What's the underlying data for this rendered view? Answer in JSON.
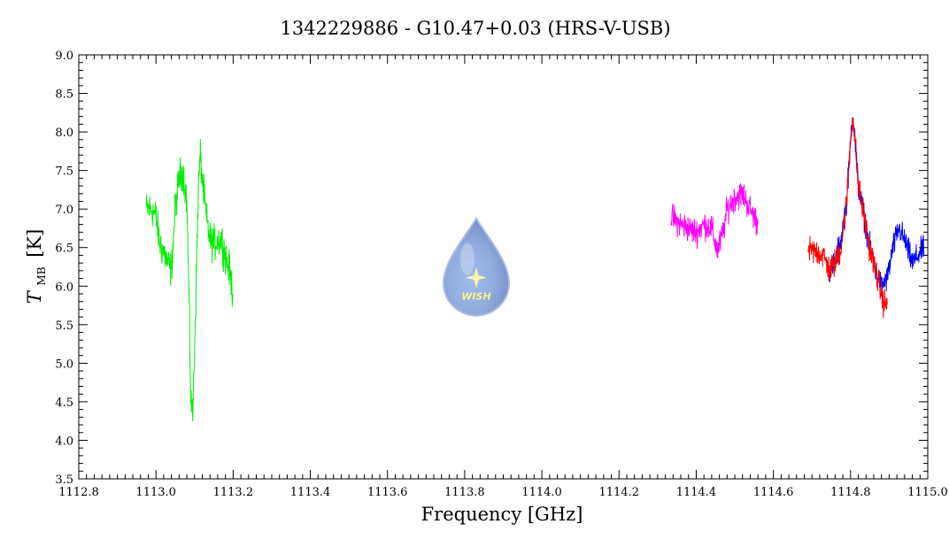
{
  "chart_data": {
    "type": "line",
    "title": "1342229886 - G10.47+0.03 (HRS-V-USB)",
    "xlabel": "Frequency [GHz]",
    "ylabel": {
      "symbol": "T",
      "subscript": "MB",
      "unit": "[K]"
    },
    "xlim": [
      1112.8,
      1115.0
    ],
    "ylim": [
      3.5,
      9.0
    ],
    "x_ticks": [
      "1112.8",
      "1113.0",
      "1113.2",
      "1113.4",
      "1113.6",
      "1113.8",
      "1114.0",
      "1114.2",
      "1114.4",
      "1114.6",
      "1114.8",
      "1115.0"
    ],
    "y_ticks": [
      "3.5",
      "4.0",
      "4.5",
      "5.0",
      "5.5",
      "6.0",
      "6.5",
      "7.0",
      "7.5",
      "8.0",
      "8.5",
      "9.0"
    ],
    "grid": false,
    "logo": {
      "text": "WISH",
      "center_x": 1113.83,
      "center_y": 6.1
    },
    "series": [
      {
        "color": "#00ee00",
        "noise": 0.28,
        "points": [
          [
            1112.975,
            7.0
          ],
          [
            1112.99,
            7.0
          ],
          [
            1113.0,
            6.9
          ],
          [
            1113.01,
            6.55
          ],
          [
            1113.02,
            6.45
          ],
          [
            1113.03,
            6.3
          ],
          [
            1113.04,
            6.2
          ],
          [
            1113.05,
            7.0
          ],
          [
            1113.06,
            7.4
          ],
          [
            1113.07,
            7.5
          ],
          [
            1113.08,
            7.1
          ],
          [
            1113.085,
            6.0
          ],
          [
            1113.09,
            4.6
          ],
          [
            1113.095,
            4.3
          ],
          [
            1113.1,
            5.2
          ],
          [
            1113.105,
            6.2
          ],
          [
            1113.11,
            7.3
          ],
          [
            1113.115,
            7.7
          ],
          [
            1113.12,
            7.4
          ],
          [
            1113.13,
            6.9
          ],
          [
            1113.14,
            6.6
          ],
          [
            1113.15,
            6.55
          ],
          [
            1113.16,
            6.6
          ],
          [
            1113.17,
            6.6
          ],
          [
            1113.18,
            6.4
          ],
          [
            1113.19,
            6.2
          ],
          [
            1113.2,
            5.9
          ]
        ]
      },
      {
        "color": "#ff00ff",
        "noise": 0.22,
        "points": [
          [
            1114.335,
            6.9
          ],
          [
            1114.36,
            6.8
          ],
          [
            1114.38,
            6.75
          ],
          [
            1114.4,
            6.7
          ],
          [
            1114.42,
            6.8
          ],
          [
            1114.44,
            6.75
          ],
          [
            1114.455,
            6.45
          ],
          [
            1114.47,
            6.7
          ],
          [
            1114.48,
            7.0
          ],
          [
            1114.5,
            7.15
          ],
          [
            1114.52,
            7.2
          ],
          [
            1114.54,
            7.0
          ],
          [
            1114.56,
            6.8
          ]
        ]
      },
      {
        "color": "#0000ff",
        "noise": 0.2,
        "points": [
          [
            1114.745,
            6.2
          ],
          [
            1114.76,
            6.3
          ],
          [
            1114.775,
            6.6
          ],
          [
            1114.79,
            7.1
          ],
          [
            1114.8,
            7.9
          ],
          [
            1114.805,
            8.25
          ],
          [
            1114.81,
            8.0
          ],
          [
            1114.82,
            7.3
          ],
          [
            1114.835,
            6.9
          ],
          [
            1114.85,
            6.5
          ],
          [
            1114.865,
            6.2
          ],
          [
            1114.88,
            6.0
          ],
          [
            1114.895,
            6.1
          ],
          [
            1114.91,
            6.5
          ],
          [
            1114.925,
            6.75
          ],
          [
            1114.94,
            6.6
          ],
          [
            1114.96,
            6.3
          ],
          [
            1114.975,
            6.4
          ],
          [
            1114.99,
            6.5
          ]
        ]
      },
      {
        "color": "#ff0000",
        "noise": 0.22,
        "points": [
          [
            1114.69,
            6.45
          ],
          [
            1114.71,
            6.45
          ],
          [
            1114.73,
            6.4
          ],
          [
            1114.745,
            6.2
          ],
          [
            1114.76,
            6.3
          ],
          [
            1114.775,
            6.5
          ],
          [
            1114.79,
            7.1
          ],
          [
            1114.8,
            7.9
          ],
          [
            1114.805,
            8.2
          ],
          [
            1114.81,
            8.0
          ],
          [
            1114.82,
            7.3
          ],
          [
            1114.835,
            6.9
          ],
          [
            1114.85,
            6.5
          ],
          [
            1114.865,
            6.2
          ],
          [
            1114.875,
            6.0
          ],
          [
            1114.885,
            5.8
          ],
          [
            1114.895,
            5.75
          ]
        ]
      }
    ]
  }
}
